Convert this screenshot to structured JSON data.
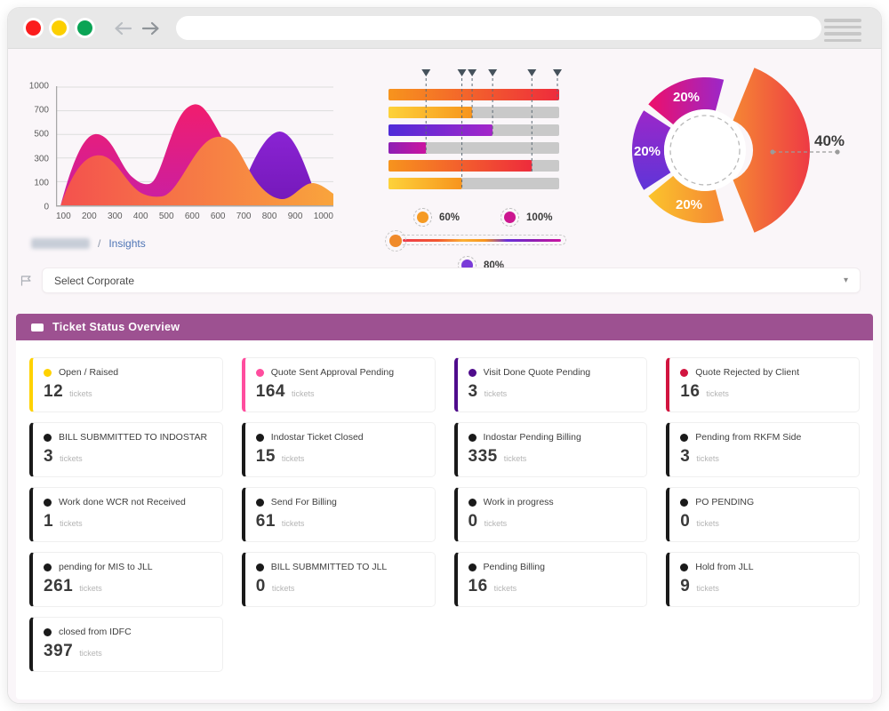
{
  "browser": {
    "traffic_lights": [
      "red",
      "yellow",
      "green"
    ],
    "url_value": "",
    "icons": {
      "back": "back-arrow",
      "forward": "forward-arrow",
      "menu": "hamburger"
    }
  },
  "breadcrumb": {
    "redacted": "",
    "separator": "/",
    "current": "Insights"
  },
  "filter": {
    "value": "Select Corporate",
    "caret": "▾"
  },
  "panel": {
    "title": "Ticket Status Overview",
    "header_color": "#9d5191",
    "unit_label": "tickets"
  },
  "cards": [
    {
      "label": "Open / Raised",
      "count": 12,
      "accent": "#ffd200"
    },
    {
      "label": "Quote Sent Approval Pending",
      "count": 164,
      "accent": "#ff4d9e"
    },
    {
      "label": "Visit Done Quote Pending",
      "count": 3,
      "accent": "#4f0c8c"
    },
    {
      "label": "Quote Rejected by Client",
      "count": 16,
      "accent": "#d1143f"
    },
    {
      "label": "BILL SUBMMITTED TO INDOSTAR",
      "count": 3,
      "accent": "#1a1a1a"
    },
    {
      "label": "Indostar Ticket Closed",
      "count": 15,
      "accent": "#1a1a1a"
    },
    {
      "label": "Indostar Pending Billing",
      "count": 335,
      "accent": "#1a1a1a"
    },
    {
      "label": "Pending from RKFM Side",
      "count": 3,
      "accent": "#1a1a1a"
    },
    {
      "label": "Work done WCR not Received",
      "count": 1,
      "accent": "#1a1a1a"
    },
    {
      "label": "Send For Billing",
      "count": 61,
      "accent": "#1a1a1a"
    },
    {
      "label": "Work in progress",
      "count": 0,
      "accent": "#1a1a1a"
    },
    {
      "label": "PO PENDING",
      "count": 0,
      "accent": "#1a1a1a"
    },
    {
      "label": "pending for MIS to JLL",
      "count": 261,
      "accent": "#1a1a1a"
    },
    {
      "label": "BILL SUBMMITTED TO JLL",
      "count": 0,
      "accent": "#1a1a1a"
    },
    {
      "label": "Pending Billing",
      "count": 16,
      "accent": "#1a1a1a"
    },
    {
      "label": "Hold from JLL",
      "count": 9,
      "accent": "#1a1a1a"
    },
    {
      "label": "closed from IDFC",
      "count": 397,
      "accent": "#1a1a1a"
    }
  ],
  "chart_data": [
    {
      "type": "area",
      "x_ticks": [
        "100",
        "200",
        "300",
        "400",
        "500",
        "600",
        "600",
        "700",
        "800",
        "900",
        "1000"
      ],
      "y_ticks": [
        "1000",
        "700",
        "500",
        "300",
        "100",
        "0"
      ],
      "grid": true,
      "series": [
        {
          "name": "magenta",
          "colors": [
            "#f11d6e",
            "#c81fa4"
          ],
          "values": [
            50,
            590,
            430,
            190,
            480,
            850,
            520,
            300,
            280,
            120,
            0
          ]
        },
        {
          "name": "purple",
          "colors": [
            "#8a23d3",
            "#7318b8"
          ],
          "values": [
            0,
            0,
            0,
            0,
            0,
            0,
            0,
            300,
            620,
            200,
            0
          ]
        },
        {
          "name": "orange",
          "colors": [
            "#f4514e",
            "#f9a43c"
          ],
          "values": [
            30,
            380,
            420,
            120,
            90,
            520,
            580,
            400,
            100,
            190,
            20
          ]
        }
      ]
    },
    {
      "type": "bar",
      "orientation": "horizontal",
      "track_color": "#c9c9c9",
      "bars": [
        {
          "value": 100,
          "gradient": "orange-red"
        },
        {
          "value": 49,
          "gradient": "yellow-orange"
        },
        {
          "value": 61,
          "gradient": "indigo-purple"
        },
        {
          "value": 22,
          "gradient": "purple-magenta"
        },
        {
          "value": 84,
          "gradient": "orange-red"
        },
        {
          "value": 43,
          "gradient": "yellow-orange"
        }
      ],
      "legend": [
        {
          "label": "60%",
          "color": "#f59a23"
        },
        {
          "label": "100%",
          "color": "#cc1690"
        },
        {
          "label": "80%",
          "color": "#7a3bd8"
        }
      ],
      "slider": {
        "handle_color": "#f08a2a"
      }
    },
    {
      "type": "pie",
      "donut": true,
      "slices": [
        {
          "label": "40%",
          "value": 40,
          "gradient": "orange-red",
          "exploded": true
        },
        {
          "label": "20%",
          "value": 20,
          "gradient": "pink-purple",
          "exploded": false
        },
        {
          "label": "20%",
          "value": 20,
          "gradient": "indigo-purple",
          "exploded": false
        },
        {
          "label": "20%",
          "value": 20,
          "gradient": "yellow-orange",
          "exploded": false
        }
      ]
    }
  ]
}
